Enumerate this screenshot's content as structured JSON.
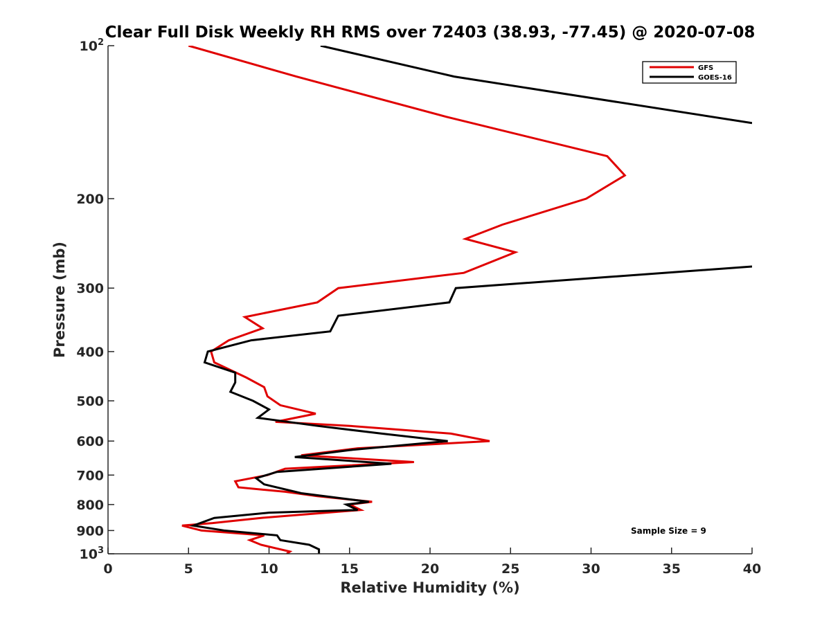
{
  "chart_data": {
    "type": "line",
    "title": "Clear Full Disk Weekly RH RMS over 72403 (38.93, -77.45) @ 2020-07-08",
    "xlabel": "Relative Humidity (%)",
    "ylabel": "Pressure (mb)",
    "xlim": [
      0,
      40
    ],
    "ylim": [
      100,
      1000
    ],
    "y_scale": "log",
    "y_reversed": true,
    "grid": false,
    "x_ticks": [
      "0",
      "5",
      "10",
      "15",
      "20",
      "25",
      "30",
      "35",
      "40"
    ],
    "y_ticks": [
      {
        "value": 100,
        "label": "10",
        "sup": "2"
      },
      {
        "value": 200,
        "label": "200"
      },
      {
        "value": 300,
        "label": "300"
      },
      {
        "value": 400,
        "label": "400"
      },
      {
        "value": 500,
        "label": "500"
      },
      {
        "value": 600,
        "label": "600"
      },
      {
        "value": 700,
        "label": "700"
      },
      {
        "value": 800,
        "label": "800"
      },
      {
        "value": 900,
        "label": "900"
      },
      {
        "value": 1000,
        "label": "10",
        "sup": "3"
      }
    ],
    "legend_position": "top-right",
    "annotation": "Sample Size = 9",
    "series": [
      {
        "name": "GFS",
        "color": "#e00000",
        "points": [
          [
            5.0,
            100
          ],
          [
            11.7,
            115
          ],
          [
            21.0,
            138
          ],
          [
            31.0,
            165
          ],
          [
            32.1,
            180
          ],
          [
            29.7,
            200
          ],
          [
            24.5,
            225
          ],
          [
            22.2,
            240
          ],
          [
            25.3,
            255
          ],
          [
            22.1,
            280
          ],
          [
            14.3,
            300
          ],
          [
            13.0,
            320
          ],
          [
            8.5,
            342
          ],
          [
            9.6,
            360
          ],
          [
            7.5,
            380
          ],
          [
            6.4,
            400
          ],
          [
            6.6,
            420
          ],
          [
            8.6,
            450
          ],
          [
            9.7,
            470
          ],
          [
            9.9,
            490
          ],
          [
            10.7,
            510
          ],
          [
            12.9,
            530
          ],
          [
            10.4,
            550
          ],
          [
            15.0,
            560
          ],
          [
            21.3,
            580
          ],
          [
            23.7,
            600
          ],
          [
            15.5,
            620
          ],
          [
            12.0,
            640
          ],
          [
            19.0,
            660
          ],
          [
            11.0,
            680
          ],
          [
            9.9,
            700
          ],
          [
            7.9,
            720
          ],
          [
            8.1,
            740
          ],
          [
            11.0,
            755
          ],
          [
            13.0,
            770
          ],
          [
            16.4,
            790
          ],
          [
            15.0,
            800
          ],
          [
            15.7,
            820
          ],
          [
            9.5,
            850
          ],
          [
            6.5,
            870
          ],
          [
            4.6,
            880
          ],
          [
            5.8,
            900
          ],
          [
            9.7,
            920
          ],
          [
            8.8,
            940
          ],
          [
            9.5,
            960
          ],
          [
            10.4,
            975
          ],
          [
            11.3,
            990
          ],
          [
            11.1,
            1000
          ]
        ]
      },
      {
        "name": "GOES-16",
        "color": "#000000",
        "points": [
          [
            13.2,
            100
          ],
          [
            21.5,
            115
          ],
          [
            40.0,
            142
          ],
          null,
          [
            40.0,
            272
          ],
          [
            21.6,
            300
          ],
          [
            21.2,
            320
          ],
          [
            14.3,
            340
          ],
          [
            13.8,
            365
          ],
          [
            8.9,
            380
          ],
          [
            6.2,
            400
          ],
          [
            6.0,
            420
          ],
          [
            7.9,
            440
          ],
          [
            7.9,
            460
          ],
          [
            7.6,
            480
          ],
          [
            9.0,
            500
          ],
          [
            10.0,
            520
          ],
          [
            9.3,
            540
          ],
          [
            13.0,
            560
          ],
          [
            17.0,
            580
          ],
          [
            21.1,
            600
          ],
          [
            15.0,
            625
          ],
          [
            11.6,
            645
          ],
          [
            17.6,
            665
          ],
          [
            10.5,
            690
          ],
          [
            9.2,
            710
          ],
          [
            9.7,
            730
          ],
          [
            12.0,
            760
          ],
          [
            16.2,
            790
          ],
          [
            14.8,
            800
          ],
          [
            15.5,
            820
          ],
          [
            10.0,
            830
          ],
          [
            6.6,
            850
          ],
          [
            5.3,
            880
          ],
          [
            7.2,
            900
          ],
          [
            10.5,
            920
          ],
          [
            10.7,
            940
          ],
          [
            12.5,
            960
          ],
          [
            13.1,
            980
          ],
          [
            13.1,
            1000
          ]
        ]
      }
    ]
  }
}
